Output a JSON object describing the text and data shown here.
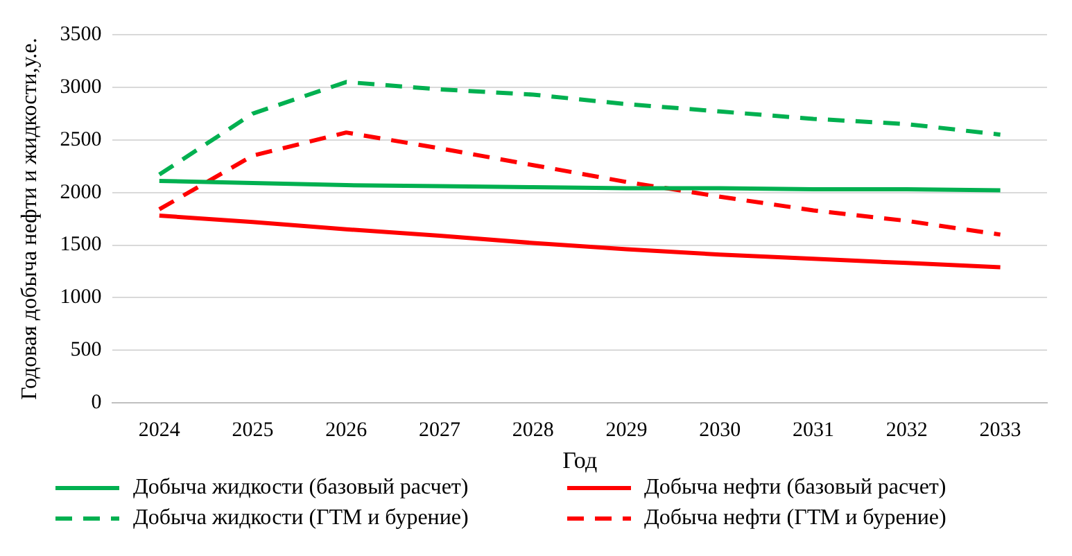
{
  "chart_data": {
    "type": "line",
    "xlabel": "Год",
    "ylabel": "Годовая добыча нефти и жидкости,у.е.",
    "categories": [
      "2024",
      "2025",
      "2026",
      "2027",
      "2028",
      "2029",
      "2030",
      "2031",
      "2032",
      "2033"
    ],
    "series": [
      {
        "name": "Добыча жидкости (базовый расчет)",
        "color": "#00b050",
        "line_style": "solid",
        "values": [
          2110,
          2090,
          2070,
          2060,
          2050,
          2040,
          2040,
          2030,
          2030,
          2020
        ]
      },
      {
        "name": "Добыча нефти (базовый расчет)",
        "color": "#ff0000",
        "line_style": "solid",
        "values": [
          1780,
          1720,
          1650,
          1590,
          1520,
          1460,
          1410,
          1370,
          1330,
          1290
        ]
      },
      {
        "name": "Добыча жидкости (ГТМ и бурение)",
        "color": "#00b050",
        "line_style": "dashed",
        "values": [
          2170,
          2750,
          3050,
          2980,
          2930,
          2840,
          2770,
          2700,
          2650,
          2550
        ]
      },
      {
        "name": "Добыча нефти (ГТМ и бурение)",
        "color": "#ff0000",
        "line_style": "dashed",
        "values": [
          1840,
          2350,
          2570,
          2420,
          2260,
          2100,
          1960,
          1830,
          1730,
          1600
        ]
      }
    ],
    "ylim": [
      0,
      3500
    ],
    "yticks": [
      0,
      500,
      1000,
      1500,
      2000,
      2500,
      3000,
      3500
    ],
    "grid": "y",
    "legend": "bottom",
    "marker": "none"
  }
}
